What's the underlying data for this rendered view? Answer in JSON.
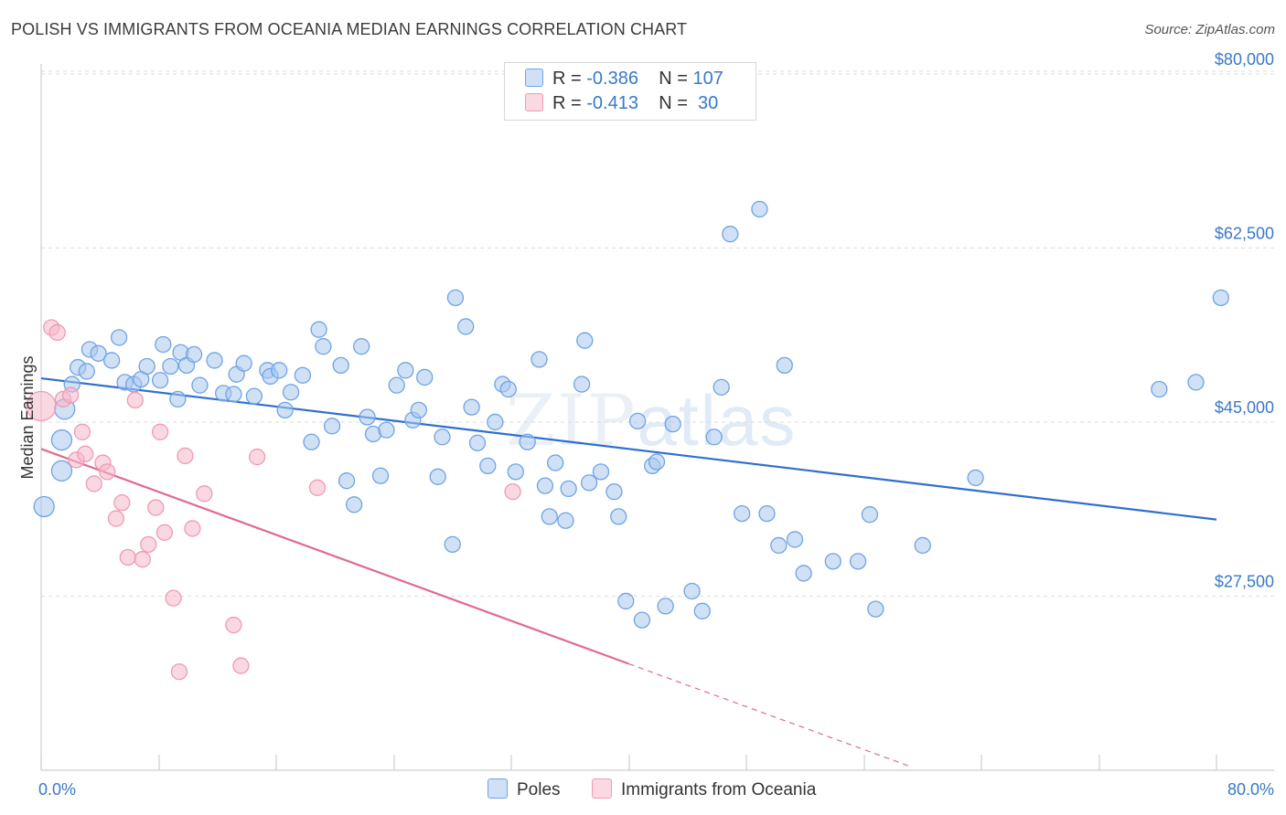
{
  "title": "POLISH VS IMMIGRANTS FROM OCEANIA MEDIAN EARNINGS CORRELATION CHART",
  "source": "Source: ZipAtlas.com",
  "watermark": {
    "zip": "ZIP",
    "atlas": "atlas"
  },
  "legend": {
    "rows": [
      {
        "r_label": "R = ",
        "r_value": "-0.386",
        "n_label": "N = ",
        "n_value": "107",
        "color": "#a9c8ef"
      },
      {
        "r_label": "R = ",
        "r_value": "-0.413",
        "n_label": "N = ",
        "n_value": " 30",
        "color": "#f6b8cb"
      }
    ]
  },
  "bottom_legend": [
    {
      "label": "Poles",
      "color": "#a9c8ef"
    },
    {
      "label": "Immigrants from Oceania",
      "color": "#f6b8cb"
    }
  ],
  "chart_data": {
    "type": "scatter",
    "ylabel": "Median Earnings",
    "xlim": [
      0,
      80
    ],
    "ylim": [
      10000,
      81000
    ],
    "y_ticks": [
      {
        "value": 80000,
        "label": "$80,000"
      },
      {
        "value": 62500,
        "label": "$62,500"
      },
      {
        "value": 45000,
        "label": "$45,000"
      },
      {
        "value": 27500,
        "label": "$27,500"
      }
    ],
    "x_tick_labels": {
      "min": "0.0%",
      "max": "80.0%"
    },
    "grid": "horizontal dashed",
    "legend_position": "top-center",
    "series": [
      {
        "name": "Poles",
        "color": "#6fa3e6",
        "fill": "#a9c8ef",
        "trend": {
          "x": [
            0,
            80
          ],
          "y": [
            49400,
            35200
          ],
          "style": "solid",
          "color": "#2f6fcf"
        },
        "points": [
          [
            0.2,
            36500
          ],
          [
            1.4,
            40100
          ],
          [
            1.4,
            43200
          ],
          [
            1.6,
            46300
          ],
          [
            2.1,
            48800
          ],
          [
            2.5,
            50500
          ],
          [
            3.1,
            50100
          ],
          [
            3.3,
            52300
          ],
          [
            3.9,
            51900
          ],
          [
            4.8,
            51200
          ],
          [
            5.3,
            53500
          ],
          [
            5.7,
            49000
          ],
          [
            6.3,
            48800
          ],
          [
            6.8,
            49300
          ],
          [
            7.2,
            50600
          ],
          [
            8.1,
            49200
          ],
          [
            8.3,
            52800
          ],
          [
            8.8,
            50600
          ],
          [
            9.3,
            47300
          ],
          [
            9.5,
            52000
          ],
          [
            9.9,
            50700
          ],
          [
            10.4,
            51800
          ],
          [
            10.8,
            48700
          ],
          [
            11.8,
            51200
          ],
          [
            12.4,
            47900
          ],
          [
            13.1,
            47800
          ],
          [
            13.3,
            49800
          ],
          [
            13.8,
            50900
          ],
          [
            14.5,
            47600
          ],
          [
            15.4,
            50200
          ],
          [
            15.6,
            49600
          ],
          [
            16.2,
            50200
          ],
          [
            16.6,
            46200
          ],
          [
            17.0,
            48000
          ],
          [
            17.8,
            49700
          ],
          [
            18.4,
            43000
          ],
          [
            18.9,
            54300
          ],
          [
            19.2,
            52600
          ],
          [
            19.8,
            44600
          ],
          [
            20.4,
            50700
          ],
          [
            20.8,
            39100
          ],
          [
            21.3,
            36700
          ],
          [
            21.8,
            52600
          ],
          [
            22.2,
            45500
          ],
          [
            22.6,
            43800
          ],
          [
            23.1,
            39600
          ],
          [
            23.5,
            44200
          ],
          [
            24.2,
            48700
          ],
          [
            24.8,
            50200
          ],
          [
            25.3,
            45200
          ],
          [
            25.7,
            46200
          ],
          [
            26.1,
            49500
          ],
          [
            27.0,
            39500
          ],
          [
            27.3,
            43500
          ],
          [
            28.0,
            32700
          ],
          [
            28.2,
            57500
          ],
          [
            28.9,
            54600
          ],
          [
            29.3,
            46500
          ],
          [
            29.7,
            42900
          ],
          [
            30.4,
            40600
          ],
          [
            30.9,
            45000
          ],
          [
            31.4,
            48800
          ],
          [
            31.8,
            48300
          ],
          [
            32.3,
            40000
          ],
          [
            33.1,
            43000
          ],
          [
            33.9,
            51300
          ],
          [
            34.3,
            38600
          ],
          [
            34.6,
            35500
          ],
          [
            35.0,
            40900
          ],
          [
            35.7,
            35100
          ],
          [
            35.9,
            38300
          ],
          [
            36.8,
            48800
          ],
          [
            37.0,
            53200
          ],
          [
            37.3,
            38900
          ],
          [
            38.1,
            40000
          ],
          [
            39.0,
            38000
          ],
          [
            39.3,
            35500
          ],
          [
            39.8,
            27000
          ],
          [
            40.6,
            45100
          ],
          [
            40.9,
            25100
          ],
          [
            41.6,
            40600
          ],
          [
            41.9,
            41000
          ],
          [
            42.5,
            26500
          ],
          [
            43.0,
            44800
          ],
          [
            44.3,
            28000
          ],
          [
            45.0,
            26000
          ],
          [
            45.8,
            43500
          ],
          [
            46.3,
            48500
          ],
          [
            46.9,
            63900
          ],
          [
            47.7,
            35800
          ],
          [
            48.9,
            66400
          ],
          [
            49.4,
            35800
          ],
          [
            50.2,
            32600
          ],
          [
            50.6,
            50700
          ],
          [
            51.3,
            33200
          ],
          [
            51.9,
            29800
          ],
          [
            53.9,
            31000
          ],
          [
            55.6,
            31000
          ],
          [
            56.4,
            35700
          ],
          [
            56.8,
            26200
          ],
          [
            60.0,
            32600
          ],
          [
            63.6,
            39400
          ],
          [
            76.1,
            48300
          ],
          [
            78.6,
            49000
          ],
          [
            80.3,
            57500
          ]
        ]
      },
      {
        "name": "Immigrants from Oceania",
        "color": "#f09ab4",
        "fill": "#f6b8cb",
        "trend": {
          "x": [
            0,
            40
          ],
          "y": [
            42300,
            20700
          ],
          "style": "solid",
          "color": "#e06b92",
          "extension": {
            "x": [
              40,
              59.3
            ],
            "y": [
              20700,
              10300
            ],
            "style": "dashed"
          }
        },
        "points": [
          [
            0.0,
            46600
          ],
          [
            0.7,
            54500
          ],
          [
            1.1,
            54000
          ],
          [
            1.5,
            47300
          ],
          [
            2.0,
            47700
          ],
          [
            2.4,
            41200
          ],
          [
            2.8,
            44000
          ],
          [
            3.0,
            41800
          ],
          [
            3.6,
            38800
          ],
          [
            4.2,
            40900
          ],
          [
            4.5,
            40000
          ],
          [
            5.1,
            35300
          ],
          [
            5.5,
            36900
          ],
          [
            5.9,
            31400
          ],
          [
            6.4,
            47200
          ],
          [
            6.9,
            31200
          ],
          [
            7.3,
            32700
          ],
          [
            7.8,
            36400
          ],
          [
            8.1,
            44000
          ],
          [
            8.4,
            33900
          ],
          [
            9.0,
            27300
          ],
          [
            9.4,
            19900
          ],
          [
            9.8,
            41600
          ],
          [
            10.3,
            34300
          ],
          [
            11.1,
            37800
          ],
          [
            13.1,
            24600
          ],
          [
            13.6,
            20500
          ],
          [
            14.7,
            41500
          ],
          [
            18.8,
            38400
          ],
          [
            32.1,
            38000
          ]
        ]
      }
    ]
  }
}
